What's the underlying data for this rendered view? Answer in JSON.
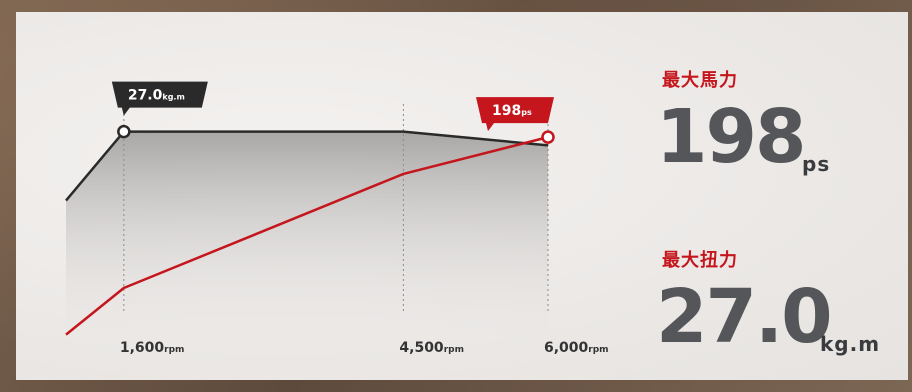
{
  "stats": {
    "power": {
      "label": "最大馬力",
      "value": "198",
      "unit": "ps"
    },
    "torque": {
      "label": "最大扭力",
      "value": "27.0",
      "unit": "kg.m"
    }
  },
  "chart_data": {
    "type": "line",
    "x_unit": "rpm",
    "x_ticks": [
      {
        "value": 1600,
        "label": "1,600",
        "unit": "rpm"
      },
      {
        "value": 4500,
        "label": "4,500",
        "unit": "rpm"
      },
      {
        "value": 6000,
        "label": "6,000",
        "unit": "rpm"
      }
    ],
    "xlim": [
      1000,
      6000
    ],
    "series": [
      {
        "key": "torque",
        "color": "#2a2a2a",
        "fill": true,
        "unit": "kg.m",
        "ylim": [
          0,
          40
        ],
        "points": [
          [
            1000,
            19.5
          ],
          [
            1600,
            27.0
          ],
          [
            4500,
            27.0
          ],
          [
            6000,
            25.5
          ]
        ],
        "peak": {
          "x": 1600,
          "y": 27.0,
          "label": "27.0",
          "unit": "kg.m"
        }
      },
      {
        "key": "power",
        "color": "#c4161c",
        "unit": "ps",
        "ylim": [
          0,
          300
        ],
        "points": [
          [
            1000,
            37
          ],
          [
            1600,
            75
          ],
          [
            4500,
            168
          ],
          [
            6000,
            198
          ]
        ],
        "peak": {
          "x": 6000,
          "y": 198,
          "label": "198",
          "unit": "ps"
        }
      }
    ],
    "grid": false,
    "legend": "none"
  },
  "colors": {
    "accent": "#c4161c",
    "dark": "#2a2a2a",
    "value_gray": "#55565a"
  }
}
